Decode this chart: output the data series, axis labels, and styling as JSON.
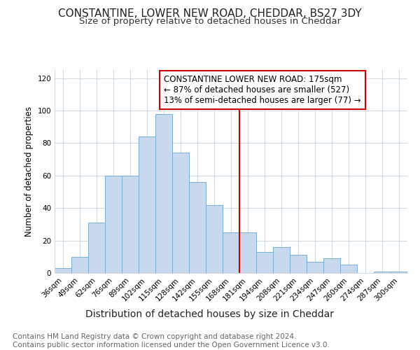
{
  "title": "CONSTANTINE, LOWER NEW ROAD, CHEDDAR, BS27 3DY",
  "subtitle": "Size of property relative to detached houses in Cheddar",
  "xlabel": "Distribution of detached houses by size in Cheddar",
  "ylabel": "Number of detached properties",
  "footnote": "Contains HM Land Registry data © Crown copyright and database right 2024.\nContains public sector information licensed under the Open Government Licence v3.0.",
  "categories": [
    "36sqm",
    "49sqm",
    "62sqm",
    "76sqm",
    "89sqm",
    "102sqm",
    "115sqm",
    "128sqm",
    "142sqm",
    "155sqm",
    "168sqm",
    "181sqm",
    "194sqm",
    "208sqm",
    "221sqm",
    "234sqm",
    "247sqm",
    "260sqm",
    "274sqm",
    "287sqm",
    "300sqm"
  ],
  "values": [
    3,
    10,
    31,
    60,
    60,
    84,
    98,
    74,
    56,
    42,
    25,
    25,
    13,
    16,
    11,
    7,
    9,
    5,
    0,
    1,
    1
  ],
  "bar_color": "#c8d8ed",
  "bar_edge_color": "#7aaed4",
  "vline_x": 10.5,
  "vline_color": "#cc0000",
  "annotation_box_text": "CONSTANTINE LOWER NEW ROAD: 175sqm\n← 87% of detached houses are smaller (527)\n13% of semi-detached houses are larger (77) →",
  "annotation_box_color": "#cc0000",
  "annotation_box_fill": "#ffffff",
  "ylim": [
    0,
    125
  ],
  "yticks": [
    0,
    20,
    40,
    60,
    80,
    100,
    120
  ],
  "grid_color": "#d0d8e0",
  "background_color": "#ffffff",
  "title_fontsize": 11,
  "subtitle_fontsize": 9.5,
  "xlabel_fontsize": 10,
  "ylabel_fontsize": 8.5,
  "tick_fontsize": 7.5,
  "annotation_fontsize": 8.5,
  "footnote_fontsize": 7.5
}
